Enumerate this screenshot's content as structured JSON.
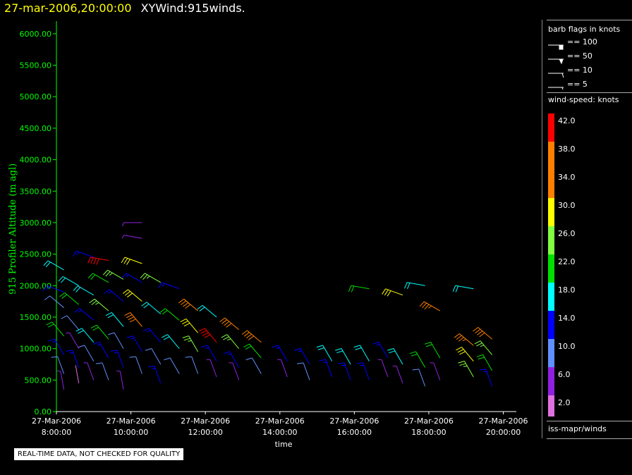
{
  "title": {
    "timestamp": "27-mar-2006,20:00:00",
    "name": "XYWind:915winds."
  },
  "quality_note": "REAL-TIME DATA, NOT CHECKED FOR QUALITY",
  "legend": {
    "barb_title": "barb flags in knots",
    "barb_items": [
      "== 100",
      "== 50",
      "== 10",
      "== 5"
    ],
    "scale_title": "wind-speed: knots",
    "scale_labels": [
      "42.0",
      "38.0",
      "34.0",
      "30.0",
      "26.0",
      "22.0",
      "18.0",
      "14.0",
      "10.0",
      "6.0",
      "2.0"
    ],
    "scale_colors": [
      "#ff0000",
      "#ff8000",
      "#ff8000",
      "#ffff00",
      "#80ff40",
      "#00e000",
      "#00ffff",
      "#0000ff",
      "#6090ff",
      "#9020e0",
      "#e070e0"
    ],
    "source": "iss-mapr/winds"
  },
  "colors": {
    "axis": "#00ff00",
    "title_timestamp": "#ffff00"
  },
  "chart_data": {
    "type": "scatter",
    "title": "27-mar-2006,20:00:00  XYWind:915winds.",
    "xlabel": "time",
    "ylabel": "915 Profiler Altitude (m agl)",
    "xlim_hours": [
      8.0,
      20.35
    ],
    "ylim": [
      0,
      6200
    ],
    "y_ticks": [
      "0.00",
      "500.00",
      "1000.00",
      "1500.00",
      "2000.00",
      "2500.00",
      "3000.00",
      "3500.00",
      "4000.00",
      "4500.00",
      "5000.00",
      "5500.00",
      "6000.00"
    ],
    "x_ticks": [
      {
        "date": "27-Mar-2006",
        "time": "8:00:00",
        "hour": 8
      },
      {
        "date": "27-Mar-2006",
        "time": "10:00:00",
        "hour": 10
      },
      {
        "date": "27-Mar-2006",
        "time": "12:00:00",
        "hour": 12
      },
      {
        "date": "27-Mar-2006",
        "time": "14:00:00",
        "hour": 14
      },
      {
        "date": "27-Mar-2006",
        "time": "16:00:00",
        "hour": 16
      },
      {
        "date": "27-Mar-2006",
        "time": "18:00:00",
        "hour": 18
      },
      {
        "date": "27-Mar-2006",
        "time": "20:00:00",
        "hour": 20
      }
    ],
    "series": [
      {
        "values": [
          {
            "t": 8.2,
            "alt": 2250,
            "spd": 18,
            "dir": 300
          },
          {
            "t": 8.2,
            "alt": 1900,
            "spd": 14,
            "dir": 290
          },
          {
            "t": 8.2,
            "alt": 1650,
            "spd": 10,
            "dir": 310
          },
          {
            "t": 8.2,
            "alt": 1200,
            "spd": 22,
            "dir": 320
          },
          {
            "t": 8.2,
            "alt": 900,
            "spd": 14,
            "dir": 330
          },
          {
            "t": 8.2,
            "alt": 600,
            "spd": 10,
            "dir": 340
          },
          {
            "t": 8.2,
            "alt": 350,
            "spd": 6,
            "dir": 350
          },
          {
            "t": 8.6,
            "alt": 2000,
            "spd": 18,
            "dir": 300
          },
          {
            "t": 8.6,
            "alt": 1700,
            "spd": 22,
            "dir": 310
          },
          {
            "t": 8.6,
            "alt": 1300,
            "spd": 10,
            "dir": 320
          },
          {
            "t": 8.6,
            "alt": 1000,
            "spd": 6,
            "dir": 330
          },
          {
            "t": 8.6,
            "alt": 700,
            "spd": 14,
            "dir": 340
          },
          {
            "t": 8.6,
            "alt": 450,
            "spd": 2,
            "dir": 350
          },
          {
            "t": 9.0,
            "alt": 2450,
            "spd": 14,
            "dir": 290
          },
          {
            "t": 9.0,
            "alt": 1850,
            "spd": 18,
            "dir": 300
          },
          {
            "t": 9.0,
            "alt": 1450,
            "spd": 14,
            "dir": 310
          },
          {
            "t": 9.0,
            "alt": 1100,
            "spd": 18,
            "dir": 320
          },
          {
            "t": 9.0,
            "alt": 800,
            "spd": 10,
            "dir": 330
          },
          {
            "t": 9.0,
            "alt": 500,
            "spd": 6,
            "dir": 340
          },
          {
            "t": 9.4,
            "alt": 2400,
            "spd": 42,
            "dir": 280
          },
          {
            "t": 9.4,
            "alt": 2050,
            "spd": 22,
            "dir": 300
          },
          {
            "t": 9.4,
            "alt": 1600,
            "spd": 26,
            "dir": 310
          },
          {
            "t": 9.4,
            "alt": 1150,
            "spd": 22,
            "dir": 320
          },
          {
            "t": 9.4,
            "alt": 850,
            "spd": 14,
            "dir": 330
          },
          {
            "t": 9.4,
            "alt": 500,
            "spd": 10,
            "dir": 340
          },
          {
            "t": 9.8,
            "alt": 2100,
            "spd": 26,
            "dir": 300
          },
          {
            "t": 9.8,
            "alt": 1750,
            "spd": 14,
            "dir": 310
          },
          {
            "t": 9.8,
            "alt": 1350,
            "spd": 18,
            "dir": 320
          },
          {
            "t": 9.8,
            "alt": 1000,
            "spd": 10,
            "dir": 330
          },
          {
            "t": 9.8,
            "alt": 700,
            "spd": 14,
            "dir": 340
          },
          {
            "t": 9.8,
            "alt": 350,
            "spd": 6,
            "dir": 350
          },
          {
            "t": 10.3,
            "alt": 3000,
            "spd": 6,
            "dir": 270
          },
          {
            "t": 10.3,
            "alt": 2750,
            "spd": 6,
            "dir": 280
          },
          {
            "t": 10.3,
            "alt": 2350,
            "spd": 30,
            "dir": 290
          },
          {
            "t": 10.3,
            "alt": 2050,
            "spd": 14,
            "dir": 300
          },
          {
            "t": 10.3,
            "alt": 1750,
            "spd": 30,
            "dir": 310
          },
          {
            "t": 10.3,
            "alt": 1350,
            "spd": 38,
            "dir": 320
          },
          {
            "t": 10.3,
            "alt": 950,
            "spd": 14,
            "dir": 330
          },
          {
            "t": 10.3,
            "alt": 600,
            "spd": 10,
            "dir": 340
          },
          {
            "t": 10.8,
            "alt": 2050,
            "spd": 26,
            "dir": 300
          },
          {
            "t": 10.8,
            "alt": 1550,
            "spd": 18,
            "dir": 310
          },
          {
            "t": 10.8,
            "alt": 1100,
            "spd": 14,
            "dir": 320
          },
          {
            "t": 10.8,
            "alt": 750,
            "spd": 10,
            "dir": 330
          },
          {
            "t": 10.8,
            "alt": 450,
            "spd": 14,
            "dir": 340
          },
          {
            "t": 11.3,
            "alt": 1950,
            "spd": 14,
            "dir": 290
          },
          {
            "t": 11.3,
            "alt": 1450,
            "spd": 22,
            "dir": 310
          },
          {
            "t": 11.3,
            "alt": 1000,
            "spd": 18,
            "dir": 320
          },
          {
            "t": 11.3,
            "alt": 600,
            "spd": 10,
            "dir": 330
          },
          {
            "t": 11.8,
            "alt": 1600,
            "spd": 38,
            "dir": 310
          },
          {
            "t": 11.8,
            "alt": 1250,
            "spd": 30,
            "dir": 320
          },
          {
            "t": 11.8,
            "alt": 950,
            "spd": 26,
            "dir": 330
          },
          {
            "t": 11.8,
            "alt": 600,
            "spd": 10,
            "dir": 340
          },
          {
            "t": 12.3,
            "alt": 1500,
            "spd": 18,
            "dir": 310
          },
          {
            "t": 12.3,
            "alt": 1100,
            "spd": 42,
            "dir": 320
          },
          {
            "t": 12.3,
            "alt": 800,
            "spd": 14,
            "dir": 330
          },
          {
            "t": 12.3,
            "alt": 550,
            "spd": 6,
            "dir": 340
          },
          {
            "t": 12.9,
            "alt": 1300,
            "spd": 38,
            "dir": 310
          },
          {
            "t": 12.9,
            "alt": 1000,
            "spd": 26,
            "dir": 320
          },
          {
            "t": 12.9,
            "alt": 700,
            "spd": 14,
            "dir": 330
          },
          {
            "t": 12.9,
            "alt": 500,
            "spd": 6,
            "dir": 340
          },
          {
            "t": 13.5,
            "alt": 1100,
            "spd": 38,
            "dir": 310
          },
          {
            "t": 13.5,
            "alt": 850,
            "spd": 22,
            "dir": 320
          },
          {
            "t": 13.5,
            "alt": 600,
            "spd": 10,
            "dir": 330
          },
          {
            "t": 14.2,
            "alt": 800,
            "spd": 14,
            "dir": 330
          },
          {
            "t": 14.2,
            "alt": 550,
            "spd": 6,
            "dir": 340
          },
          {
            "t": 14.8,
            "alt": 750,
            "spd": 14,
            "dir": 330
          },
          {
            "t": 14.8,
            "alt": 500,
            "spd": 10,
            "dir": 340
          },
          {
            "t": 15.4,
            "alt": 800,
            "spd": 18,
            "dir": 330
          },
          {
            "t": 15.4,
            "alt": 550,
            "spd": 14,
            "dir": 340
          },
          {
            "t": 15.9,
            "alt": 750,
            "spd": 18,
            "dir": 330
          },
          {
            "t": 15.9,
            "alt": 500,
            "spd": 14,
            "dir": 340
          },
          {
            "t": 16.4,
            "alt": 1950,
            "spd": 22,
            "dir": 280
          },
          {
            "t": 16.4,
            "alt": 800,
            "spd": 18,
            "dir": 330
          },
          {
            "t": 16.4,
            "alt": 500,
            "spd": 14,
            "dir": 340
          },
          {
            "t": 16.9,
            "alt": 850,
            "spd": 14,
            "dir": 330
          },
          {
            "t": 16.9,
            "alt": 550,
            "spd": 6,
            "dir": 340
          },
          {
            "t": 17.3,
            "alt": 1850,
            "spd": 30,
            "dir": 290
          },
          {
            "t": 17.3,
            "alt": 750,
            "spd": 18,
            "dir": 330
          },
          {
            "t": 17.3,
            "alt": 450,
            "spd": 6,
            "dir": 340
          },
          {
            "t": 17.9,
            "alt": 2000,
            "spd": 18,
            "dir": 280
          },
          {
            "t": 17.9,
            "alt": 700,
            "spd": 22,
            "dir": 330
          },
          {
            "t": 17.9,
            "alt": 400,
            "spd": 10,
            "dir": 340
          },
          {
            "t": 18.3,
            "alt": 1600,
            "spd": 34,
            "dir": 300
          },
          {
            "t": 18.3,
            "alt": 850,
            "spd": 22,
            "dir": 330
          },
          {
            "t": 18.3,
            "alt": 500,
            "spd": 6,
            "dir": 340
          },
          {
            "t": 19.2,
            "alt": 1950,
            "spd": 18,
            "dir": 280
          },
          {
            "t": 19.2,
            "alt": 1050,
            "spd": 34,
            "dir": 310
          },
          {
            "t": 19.2,
            "alt": 800,
            "spd": 30,
            "dir": 320
          },
          {
            "t": 19.2,
            "alt": 550,
            "spd": 26,
            "dir": 330
          },
          {
            "t": 19.7,
            "alt": 1150,
            "spd": 38,
            "dir": 310
          },
          {
            "t": 19.7,
            "alt": 900,
            "spd": 26,
            "dir": 320
          },
          {
            "t": 19.7,
            "alt": 650,
            "spd": 22,
            "dir": 330
          },
          {
            "t": 19.7,
            "alt": 400,
            "spd": 14,
            "dir": 340
          }
        ]
      }
    ]
  }
}
